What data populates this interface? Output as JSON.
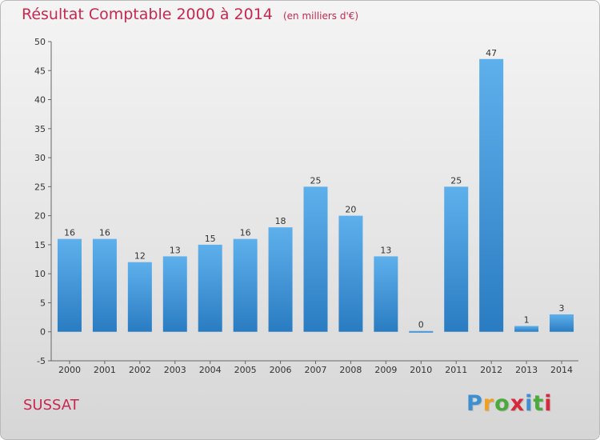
{
  "chart_data": {
    "type": "bar",
    "title": "Résultat Comptable 2000 à 2014",
    "subtitle": "(en milliers d'€)",
    "categories": [
      "2000",
      "2001",
      "2002",
      "2003",
      "2004",
      "2005",
      "2006",
      "2007",
      "2008",
      "2009",
      "2010",
      "2011",
      "2012",
      "2013",
      "2014"
    ],
    "values": [
      16,
      16,
      12,
      13,
      15,
      16,
      18,
      25,
      20,
      13,
      0,
      25,
      47,
      1,
      3
    ],
    "data_labels": [
      "16",
      "16",
      "12",
      "13",
      "15",
      "16",
      "18",
      "25",
      "20",
      "13",
      "0",
      "25",
      "47",
      "1",
      "3"
    ],
    "ylim": [
      -5,
      50
    ],
    "yticks": [
      -5,
      0,
      5,
      10,
      15,
      20,
      25,
      30,
      35,
      40,
      45,
      50
    ],
    "grid": false,
    "bar_color": "#3d8fd6"
  },
  "footer": {
    "location": "SUSSAT",
    "logo_letters": [
      "P",
      "r",
      "o",
      "x",
      "i",
      "t",
      "i"
    ],
    "logo_colors": [
      "#3b8fd2",
      "#f0a020",
      "#4caa3c",
      "#d8283c",
      "#3b8fd2",
      "#4caa3c",
      "#d8283c"
    ]
  }
}
